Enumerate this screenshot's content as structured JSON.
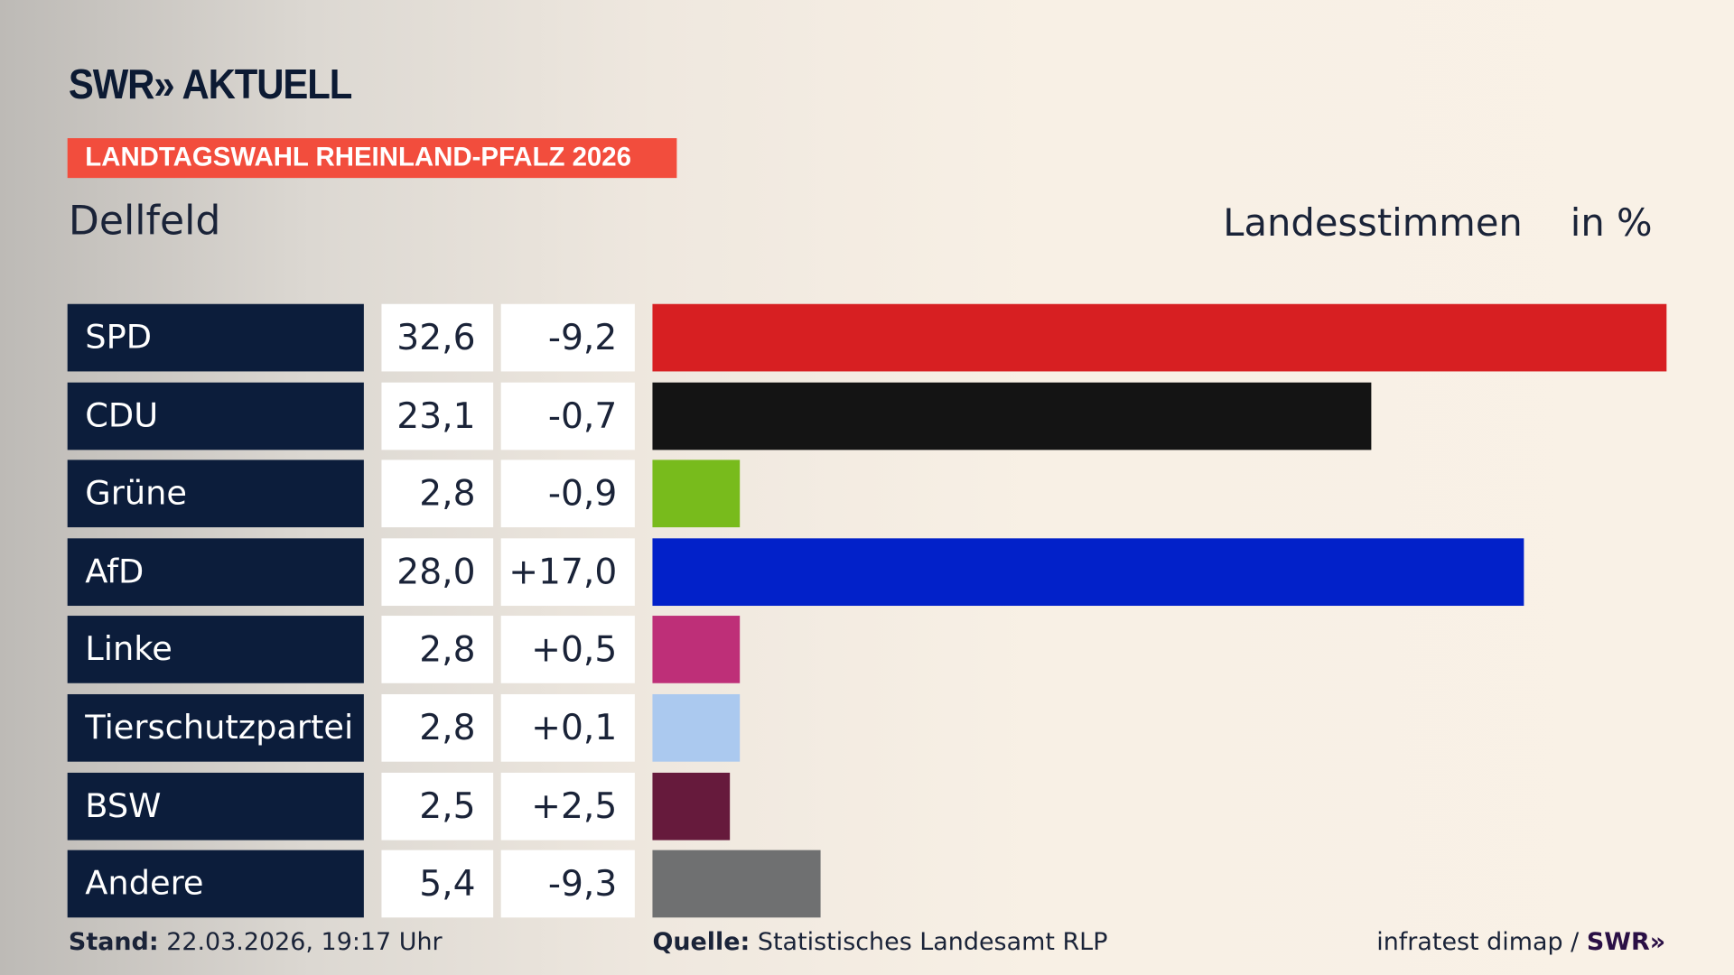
{
  "header": {
    "logo": "SWR» AKTUELL",
    "kicker": "LANDTAGSWAHL RHEINLAND-PFALZ 2026",
    "place": "Dellfeld",
    "metric": "Landesstimmen",
    "unit": "in %"
  },
  "chart_data": {
    "type": "bar",
    "orientation": "horizontal",
    "categories": [
      "SPD",
      "CDU",
      "Grüne",
      "AfD",
      "Linke",
      "Tierschutzpartei",
      "BSW",
      "Andere"
    ],
    "values": [
      32.6,
      23.1,
      2.8,
      28.0,
      2.8,
      2.8,
      2.5,
      5.4
    ],
    "value_labels": [
      "32,6",
      "23,1",
      "2,8",
      "28,0",
      "2,8",
      "2,8",
      "2,5",
      "5,4"
    ],
    "diff_labels": [
      "-9,2",
      "-0,7",
      "-0,9",
      "+17,0",
      "+0,5",
      "+0,1",
      "+2,5",
      "-9,3"
    ],
    "colors": [
      "#d71f22",
      "#141414",
      "#78bb1c",
      "#0221c9",
      "#be2f78",
      "#abc9ef",
      "#661a3c",
      "#6f7071"
    ],
    "title": "Landesstimmen",
    "unit": "in %"
  },
  "footer": {
    "stand_label": "Stand:",
    "stand_value": "22.03.2026, 19:17 Uhr",
    "source_label": "Quelle:",
    "source_value": "Statistisches Landesamt RLP",
    "credit": "infratest dimap /",
    "credit_logo": "SWR»"
  }
}
